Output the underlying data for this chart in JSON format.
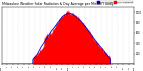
{
  "title": "Milwaukee Weather Solar Radiation & Day Average per Minute (Today)",
  "title_fontsize": 2.5,
  "bg_color": "#ffffff",
  "plot_bg_color": "#ffffff",
  "grid_color": "#aaaaaa",
  "bar_color": "#ff0000",
  "line_color": "#0000cc",
  "legend_labels": [
    "Solar Radiation",
    "Day Average"
  ],
  "legend_colors": [
    "#ff0000",
    "#0000cc"
  ],
  "xlim": [
    0,
    1440
  ],
  "ylim": [
    0,
    1100
  ],
  "ytick_values": [
    200,
    400,
    600,
    800,
    1000
  ],
  "xtick_positions": [
    0,
    60,
    120,
    180,
    240,
    300,
    360,
    420,
    480,
    540,
    600,
    660,
    720,
    780,
    840,
    900,
    960,
    1020,
    1080,
    1140,
    1200,
    1260,
    1320,
    1380,
    1440
  ],
  "xtick_labels": [
    "12a",
    "1",
    "2",
    "3",
    "4",
    "5",
    "6",
    "7",
    "8",
    "9",
    "10",
    "11",
    "12p",
    "1",
    "2",
    "3",
    "4",
    "5",
    "6",
    "7",
    "8",
    "9",
    "10",
    "11",
    "12a"
  ]
}
